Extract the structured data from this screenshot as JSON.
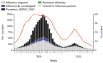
{
  "chart_data": {
    "type": "bar",
    "stacked": true,
    "legend": "upper left",
    "grid": false,
    "x_label": "Week",
    "y_label": "No. samples",
    "y2_label": "% positive",
    "categories": [
      23,
      24,
      25,
      26,
      27,
      28,
      29,
      30,
      31,
      32,
      33,
      34,
      35,
      36,
      37,
      38,
      39,
      40,
      41,
      42,
      43,
      44,
      45,
      46,
      47,
      48,
      49,
      50,
      51,
      52,
      1,
      2,
      3,
      4,
      5,
      6,
      7,
      8,
      9,
      10,
      11,
      12,
      13,
      14,
      15,
      16,
      17,
      18
    ],
    "series": [
      {
        "name": "Influenza negative",
        "color": "#d0d0d0",
        "values": [
          60,
          70,
          80,
          90,
          100,
          110,
          130,
          150,
          170,
          190,
          230,
          260,
          290,
          310,
          340,
          360,
          380,
          400,
          390,
          360,
          330,
          290,
          250,
          210,
          170,
          145,
          130,
          115,
          100,
          88,
          90,
          95,
          105,
          115,
          125,
          140,
          160,
          150,
          135,
          115,
          100,
          85,
          68,
          52,
          45,
          36,
          30,
          22
        ]
      },
      {
        "name": "Influenza A, unsubtyped",
        "color": "#4a4a8a",
        "values": [
          2,
          2,
          3,
          5,
          8,
          10,
          14,
          18,
          22,
          30,
          45,
          60,
          80,
          95,
          110,
          120,
          135,
          150,
          145,
          125,
          110,
          85,
          65,
          40,
          22,
          15,
          12,
          10,
          7,
          5,
          5,
          5,
          7,
          9,
          10,
          13,
          16,
          15,
          12,
          9,
          7,
          5,
          3,
          2,
          2,
          1,
          1,
          1
        ]
      },
      {
        "name": "Pandemic (H1N1) 2009",
        "color": "#1a1a1a",
        "values": [
          5,
          8,
          15,
          25,
          40,
          65,
          100,
          130,
          160,
          220,
          350,
          480,
          570,
          650,
          720,
          760,
          820,
          900,
          860,
          750,
          650,
          500,
          380,
          220,
          130,
          90,
          70,
          55,
          38,
          28,
          28,
          30,
          42,
          55,
          65,
          85,
          110,
          95,
          72,
          52,
          42,
          30,
          18,
          10,
          8,
          5,
          4,
          3
        ]
      },
      {
        "name": "Seasonal influenza",
        "color": "#50b050",
        "values": [
          2,
          2,
          2,
          2,
          2,
          2,
          2,
          2,
          2,
          2,
          2,
          2,
          2,
          2,
          2,
          2,
          2,
          2,
          2,
          2,
          2,
          2,
          2,
          2,
          2,
          2,
          2,
          2,
          2,
          2,
          2,
          2,
          2,
          2,
          2,
          2,
          2,
          2,
          2,
          2,
          2,
          2,
          2,
          2,
          2,
          2,
          2,
          2
        ]
      },
      {
        "name": "Overall % influenza positive",
        "type": "line",
        "axis": "y2",
        "color": "#e05020",
        "values": [
          8,
          9,
          12,
          15,
          19,
          24,
          29,
          31,
          32,
          34,
          37,
          39,
          40,
          40,
          39,
          38,
          38,
          39,
          38,
          37,
          36,
          34,
          32,
          28,
          24,
          21,
          18,
          16,
          13,
          11,
          11,
          11,
          13,
          15,
          17,
          20,
          23,
          22,
          19,
          17,
          14,
          11,
          9,
          8,
          7,
          6,
          5,
          4
        ]
      }
    ],
    "ylim": [
      0,
      1500
    ],
    "yticks": [
      0,
      250,
      500,
      750,
      1000,
      1250,
      1500
    ],
    "y2lim": [
      0,
      40
    ],
    "y2ticks": [
      0,
      10,
      20,
      30,
      40
    ],
    "annotations": [
      {
        "text": "2009",
        "range": [
          23,
          52
        ]
      },
      {
        "text": "2010",
        "range": [
          1,
          18
        ]
      }
    ]
  }
}
